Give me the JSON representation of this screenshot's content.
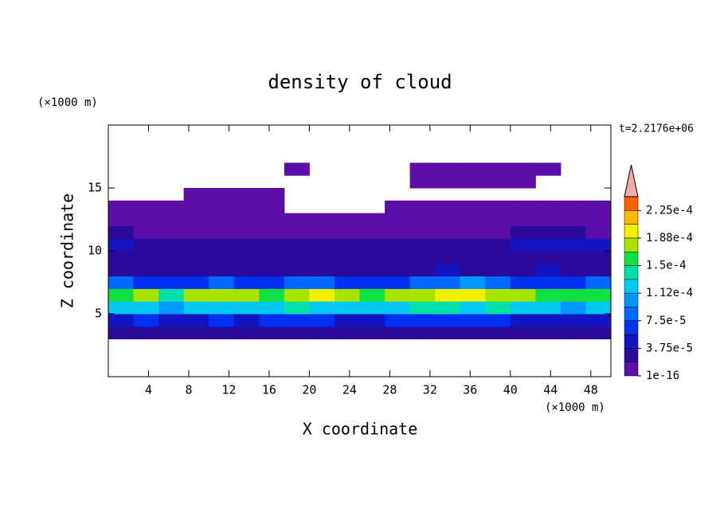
{
  "chart_data": {
    "type": "contour",
    "title": "density of cloud",
    "x_label": "X coordinate",
    "y_label": "Z coordinate",
    "x_unit": "(×1000 m)",
    "y_unit": "(×1000 m)",
    "time_label": "t=2.2176e+06",
    "xlim": [
      0,
      50
    ],
    "ylim": [
      0,
      20
    ],
    "xticks": [
      4,
      8,
      12,
      16,
      20,
      24,
      28,
      32,
      36,
      40,
      44,
      48
    ],
    "yticks": [
      5,
      10,
      15
    ],
    "x": [
      1.25,
      3.75,
      6.25,
      8.75,
      11.25,
      13.75,
      16.25,
      18.75,
      21.25,
      23.75,
      26.25,
      28.75,
      31.25,
      33.75,
      36.25,
      38.75,
      41.25,
      43.75,
      46.25,
      48.75
    ],
    "y": [
      3.5,
      4.5,
      5.5,
      6.5,
      7.5,
      8.5,
      9.5,
      10.5,
      11.5,
      12.5,
      13.5,
      14.5,
      15.5,
      16.5,
      17.5
    ],
    "z": [
      [
        2.5e-05,
        2.5e-05,
        2.5e-05,
        2.5e-05,
        2.5e-05,
        2.5e-05,
        2.5e-05,
        2.5e-05,
        2.5e-05,
        2.5e-05,
        2.5e-05,
        2.5e-05,
        2.5e-05,
        2.5e-05,
        2.5e-05,
        2.5e-05,
        2.5e-05,
        2.5e-05,
        2.5e-05,
        2.5e-05
      ],
      [
        5e-05,
        6e-05,
        5e-05,
        5.5e-05,
        6e-05,
        5.5e-05,
        6e-05,
        6.5e-05,
        6e-05,
        5.5e-05,
        5e-05,
        6e-05,
        6.5e-05,
        6e-05,
        6.5e-05,
        6e-05,
        5.5e-05,
        5e-05,
        5e-05,
        5.5e-05
      ],
      [
        0.00012,
        0.00013,
        0.00011,
        0.00012,
        0.00013,
        0.000125,
        0.00013,
        0.000135,
        0.00013,
        0.00012,
        0.000125,
        0.00013,
        0.000135,
        0.00014,
        0.00013,
        0.000135,
        0.00013,
        0.00012,
        0.00011,
        0.00012
      ],
      [
        0.00016,
        0.00017,
        0.00014,
        0.00017,
        0.000175,
        0.00017,
        0.00016,
        0.00018,
        0.00019,
        0.00018,
        0.00015,
        0.00018,
        0.00018,
        0.00019,
        0.0002,
        0.00018,
        0.000175,
        0.00015,
        0.00015,
        0.00016
      ],
      [
        8e-05,
        7e-05,
        6e-05,
        7e-05,
        8e-05,
        6e-05,
        7e-05,
        9e-05,
        8e-05,
        7e-05,
        6e-05,
        7e-05,
        8e-05,
        9e-05,
        0.0001,
        8e-05,
        7e-05,
        6e-05,
        7e-05,
        9e-05
      ],
      [
        3e-05,
        3.5e-05,
        3e-05,
        3e-05,
        3.5e-05,
        3e-05,
        3e-05,
        3.5e-05,
        3e-05,
        3e-05,
        3e-05,
        3e-05,
        3.5e-05,
        4e-05,
        3.5e-05,
        3e-05,
        3.5e-05,
        4e-05,
        3.5e-05,
        3e-05
      ],
      [
        2.5e-05,
        3e-05,
        2e-05,
        2.5e-05,
        2e-05,
        2e-05,
        2.5e-05,
        2e-05,
        2e-05,
        2e-05,
        2e-05,
        2.5e-05,
        2e-05,
        2e-05,
        2.5e-05,
        3e-05,
        3e-05,
        3.5e-05,
        3e-05,
        3e-05
      ],
      [
        4e-05,
        3e-05,
        2e-05,
        2e-05,
        2.5e-05,
        2e-05,
        2e-05,
        2.5e-05,
        2e-05,
        2e-05,
        2e-05,
        2e-05,
        2e-05,
        2e-05,
        2.5e-05,
        3e-05,
        4e-05,
        5e-05,
        4.5e-05,
        4e-05
      ],
      [
        2e-05,
        1.5e-05,
        1e-05,
        1e-05,
        1e-05,
        1e-05,
        1e-05,
        1e-05,
        1e-05,
        1e-05,
        1e-05,
        1e-05,
        1e-05,
        1e-05,
        1e-05,
        1.5e-05,
        2e-05,
        2e-05,
        2e-05,
        1.5e-05
      ],
      [
        8e-06,
        8e-06,
        8e-06,
        8e-06,
        8e-06,
        8e-06,
        8e-06,
        8e-06,
        8e-06,
        8e-06,
        8e-06,
        8e-06,
        8e-06,
        8e-06,
        8e-06,
        8e-06,
        8e-06,
        8e-06,
        8e-06,
        8e-06
      ],
      [
        5e-06,
        5e-06,
        5e-06,
        5e-06,
        5e-06,
        5e-06,
        5e-06,
        null,
        null,
        null,
        null,
        5e-06,
        5e-06,
        5e-06,
        5e-06,
        5e-06,
        5e-06,
        5e-06,
        5e-06,
        5e-06
      ],
      [
        null,
        null,
        null,
        5e-06,
        5e-06,
        5e-06,
        5e-06,
        null,
        null,
        null,
        null,
        null,
        null,
        null,
        null,
        null,
        null,
        null,
        null,
        null
      ],
      [
        null,
        null,
        null,
        null,
        null,
        null,
        null,
        null,
        null,
        null,
        null,
        null,
        5e-06,
        5e-06,
        5e-06,
        5e-06,
        5e-06,
        null,
        null,
        null
      ],
      [
        null,
        null,
        null,
        null,
        null,
        null,
        null,
        5e-06,
        null,
        null,
        null,
        null,
        5e-06,
        5e-06,
        5e-06,
        5e-06,
        5e-06,
        5e-06,
        null,
        null
      ],
      [
        null,
        null,
        null,
        null,
        null,
        null,
        null,
        null,
        null,
        null,
        null,
        null,
        null,
        null,
        null,
        null,
        null,
        null,
        null,
        null
      ]
    ],
    "levels": [
      1e-16,
      1.875e-05,
      3.75e-05,
      5.625e-05,
      7.5e-05,
      9.375e-05,
      0.0001125,
      0.00013125,
      0.00015,
      0.00016875,
      0.0001875,
      0.00020625,
      0.000225,
      0.00024375
    ],
    "colors": [
      "#5c0fa8",
      "#2a0a98",
      "#1414c0",
      "#0030f0",
      "#0068ff",
      "#0098ff",
      "#00c8f0",
      "#00e0a8",
      "#10e040",
      "#a8e400",
      "#f4f000",
      "#ffb800",
      "#ff6000"
    ],
    "extend_color": "#f4a8a8",
    "colorbar_ticks": [
      {
        "value": 1e-16,
        "label": "1e-16"
      },
      {
        "value": 3.75e-05,
        "label": "3.75e-5"
      },
      {
        "value": 7.5e-05,
        "label": "7.5e-5"
      },
      {
        "value": 0.0001125,
        "label": "1.12e-4"
      },
      {
        "value": 0.00015,
        "label": "1.5e-4"
      },
      {
        "value": 0.0001875,
        "label": "1.88e-4"
      },
      {
        "value": 0.000225,
        "label": "2.25e-4"
      }
    ]
  }
}
